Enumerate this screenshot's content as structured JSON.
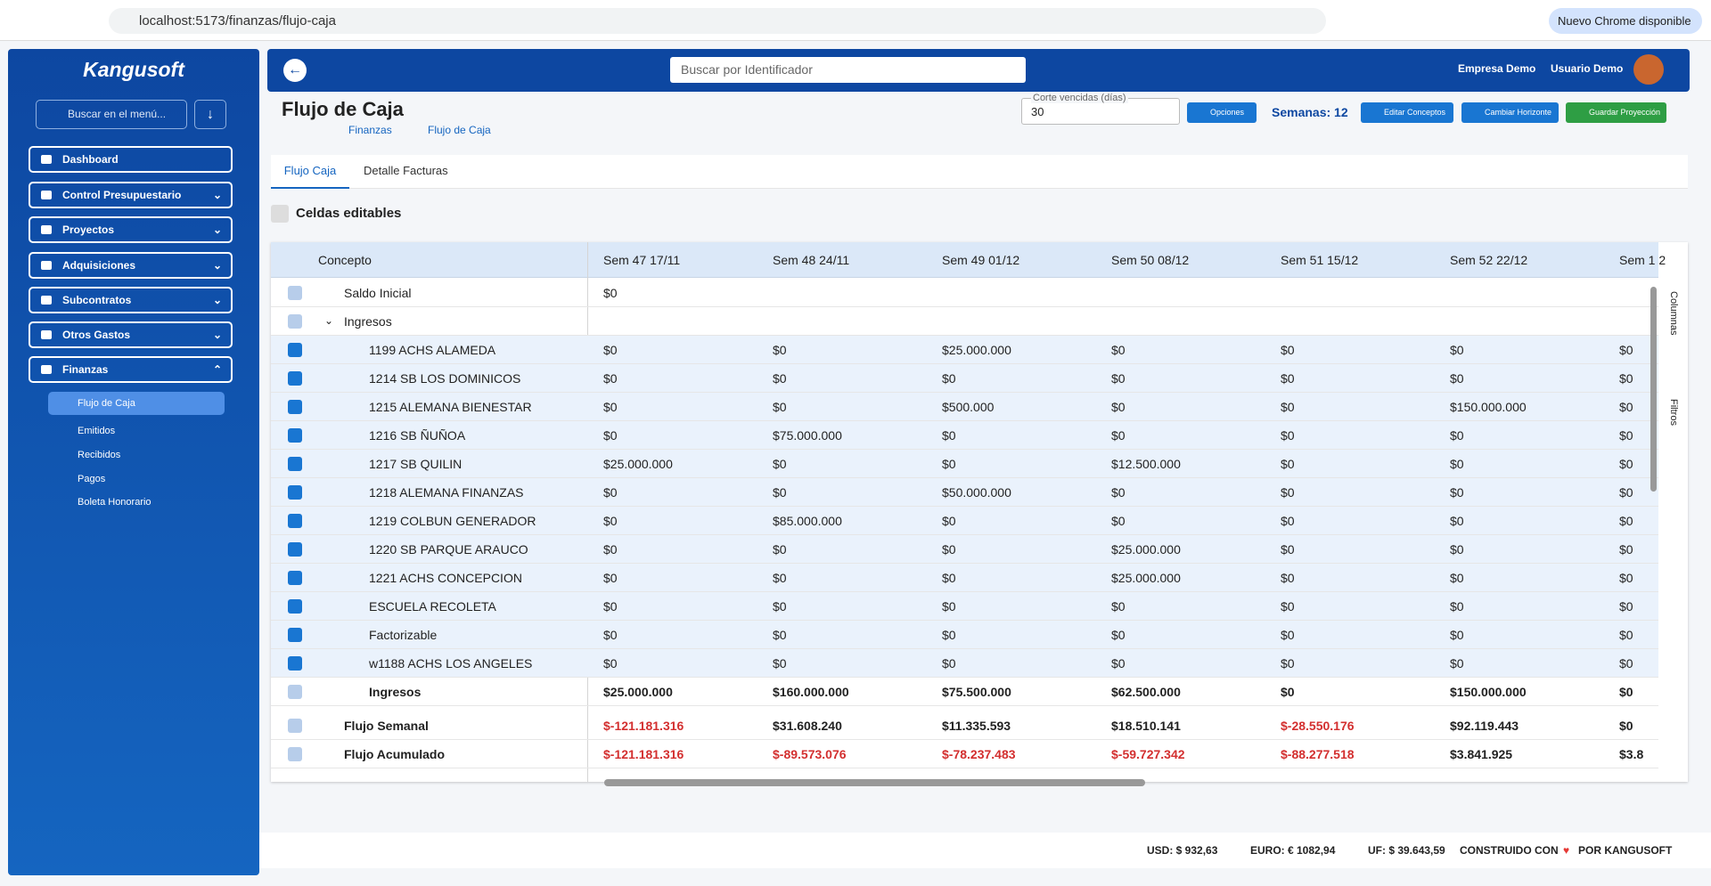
{
  "browser": {
    "url": "localhost:5173/finanzas/flujo-caja",
    "update": "Nuevo Chrome disponible"
  },
  "sidebar": {
    "brand": "Kangusoft",
    "search_placeholder": "Buscar en el menú...",
    "menu": [
      "Dashboard",
      "Control Presupuestario",
      "Proyectos",
      "Adquisiciones",
      "Subcontratos",
      "Otros Gastos",
      "Finanzas"
    ],
    "submenu": [
      "Flujo de Caja",
      "Emitidos",
      "Recibidos",
      "Pagos",
      "Boleta Honorario"
    ]
  },
  "header": {
    "search_placeholder": "Buscar por Identificador",
    "company": "Empresa Demo",
    "user": "Usuario Demo"
  },
  "page": {
    "title": "Flujo de Caja",
    "breadcrumb": [
      "Finanzas",
      "Flujo de Caja"
    ],
    "corte_label": "Corte vencidas (días)",
    "corte_value": "30",
    "buttons": {
      "options": "Opciones",
      "weeks": "Semanas: 12",
      "edit": "Editar Conceptos",
      "horizon": "Cambiar Horizonte",
      "save": "Guardar Proyección"
    },
    "tabs": [
      "Flujo Caja",
      "Detalle Facturas"
    ],
    "editable": "Celdas editables"
  },
  "table": {
    "columns": [
      "Concepto",
      "Sem 47 17/11",
      "Sem 48 24/11",
      "Sem 49 01/12",
      "Sem 50 08/12",
      "Sem 51 15/12",
      "Sem 52 22/12",
      "Sem 1 2"
    ],
    "saldo_inicial": {
      "label": "Saldo Inicial",
      "cells": [
        "$0"
      ]
    },
    "group": {
      "label": "Ingresos",
      "rows": [
        {
          "label": "1199 ACHS ALAMEDA",
          "cells": [
            "$0",
            "$0",
            "$25.000.000",
            "$0",
            "$0",
            "$0",
            "$0"
          ]
        },
        {
          "label": "1214 SB LOS DOMINICOS",
          "cells": [
            "$0",
            "$0",
            "$0",
            "$0",
            "$0",
            "$0",
            "$0"
          ]
        },
        {
          "label": "1215 ALEMANA BIENESTAR",
          "cells": [
            "$0",
            "$0",
            "$500.000",
            "$0",
            "$0",
            "$150.000.000",
            "$0"
          ]
        },
        {
          "label": "1216 SB ÑUÑOA",
          "cells": [
            "$0",
            "$75.000.000",
            "$0",
            "$0",
            "$0",
            "$0",
            "$0"
          ]
        },
        {
          "label": "1217 SB QUILIN",
          "cells": [
            "$25.000.000",
            "$0",
            "$0",
            "$12.500.000",
            "$0",
            "$0",
            "$0"
          ]
        },
        {
          "label": "1218 ALEMANA FINANZAS",
          "cells": [
            "$0",
            "$0",
            "$50.000.000",
            "$0",
            "$0",
            "$0",
            "$0"
          ]
        },
        {
          "label": "1219 COLBUN GENERADOR",
          "cells": [
            "$0",
            "$85.000.000",
            "$0",
            "$0",
            "$0",
            "$0",
            "$0"
          ]
        },
        {
          "label": "1220 SB PARQUE ARAUCO",
          "cells": [
            "$0",
            "$0",
            "$0",
            "$25.000.000",
            "$0",
            "$0",
            "$0"
          ]
        },
        {
          "label": "1221 ACHS CONCEPCION",
          "cells": [
            "$0",
            "$0",
            "$0",
            "$25.000.000",
            "$0",
            "$0",
            "$0"
          ]
        },
        {
          "label": "ESCUELA RECOLETA",
          "cells": [
            "$0",
            "$0",
            "$0",
            "$0",
            "$0",
            "$0",
            "$0"
          ]
        },
        {
          "label": "Factorizable",
          "cells": [
            "$0",
            "$0",
            "$0",
            "$0",
            "$0",
            "$0",
            "$0"
          ]
        },
        {
          "label": "w1188 ACHS LOS ANGELES",
          "cells": [
            "$0",
            "$0",
            "$0",
            "$0",
            "$0",
            "$0",
            "$0"
          ]
        }
      ],
      "total": {
        "label": "Ingresos",
        "cells": [
          "$25.000.000",
          "$160.000.000",
          "$75.500.000",
          "$62.500.000",
          "$0",
          "$150.000.000",
          "$0"
        ]
      }
    },
    "summary": [
      {
        "label": "Flujo Semanal",
        "cells": [
          "$-121.181.316",
          "$31.608.240",
          "$11.335.593",
          "$18.510.141",
          "$-28.550.176",
          "$92.119.443",
          "$0"
        ]
      },
      {
        "label": "Flujo Acumulado",
        "cells": [
          "$-121.181.316",
          "$-89.573.076",
          "$-78.237.483",
          "$-59.727.342",
          "$-88.277.518",
          "$3.841.925",
          "$3.8"
        ]
      }
    ],
    "side_panel": [
      "Columnas",
      "Filtros"
    ]
  },
  "footer": {
    "usd": "USD: $ 932,63",
    "euro": "EURO: € 1082,94",
    "uf": "UF: $ 39.643,59",
    "built": "CONSTRUIDO CON",
    "by": "POR KANGUSOFT"
  }
}
